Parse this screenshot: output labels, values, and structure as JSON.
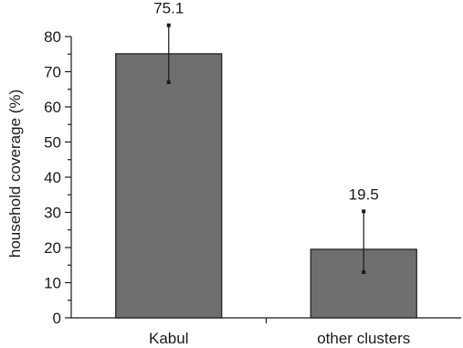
{
  "chart_data": {
    "type": "bar",
    "categories": [
      "Kabul",
      "other clusters"
    ],
    "values": [
      75.1,
      19.5
    ],
    "data_labels": [
      "75.1",
      "19.5"
    ],
    "error_bars": [
      {
        "low": 67.0,
        "high": 83.2
      },
      {
        "low": 13.0,
        "high": 30.3
      }
    ],
    "title": "",
    "xlabel": "",
    "ylabel": "household coverage (%)",
    "ylim": [
      0,
      80
    ],
    "yticks": [
      0,
      10,
      20,
      30,
      40,
      50,
      60,
      70,
      80
    ],
    "grid": false,
    "colors": {
      "bar": "#6f6f6f",
      "axis": "#1a1a1a"
    }
  }
}
